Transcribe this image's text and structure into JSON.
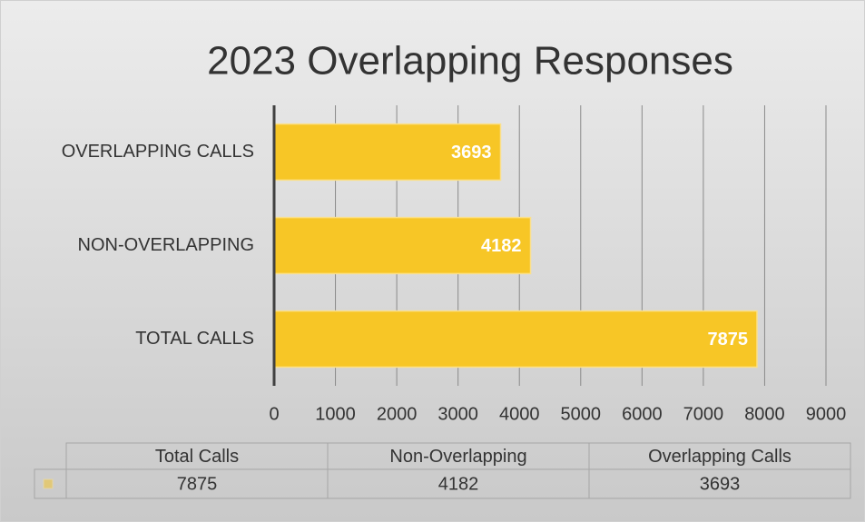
{
  "chart_data": {
    "type": "bar",
    "orientation": "horizontal",
    "title": "2023 Overlapping Responses",
    "categories": [
      "OVERLAPPING CALLS",
      "NON-OVERLAPPING",
      "TOTAL CALLS"
    ],
    "values": [
      3693,
      4182,
      7875
    ],
    "color": "#f7c626",
    "xlim": [
      0,
      9000
    ],
    "xticks": [
      0,
      1000,
      2000,
      3000,
      4000,
      5000,
      6000,
      7000,
      8000,
      9000
    ],
    "grid": true
  },
  "data_table": {
    "headers": [
      "Total Calls",
      "Non-Overlapping",
      "Overlapping Calls"
    ]
  }
}
